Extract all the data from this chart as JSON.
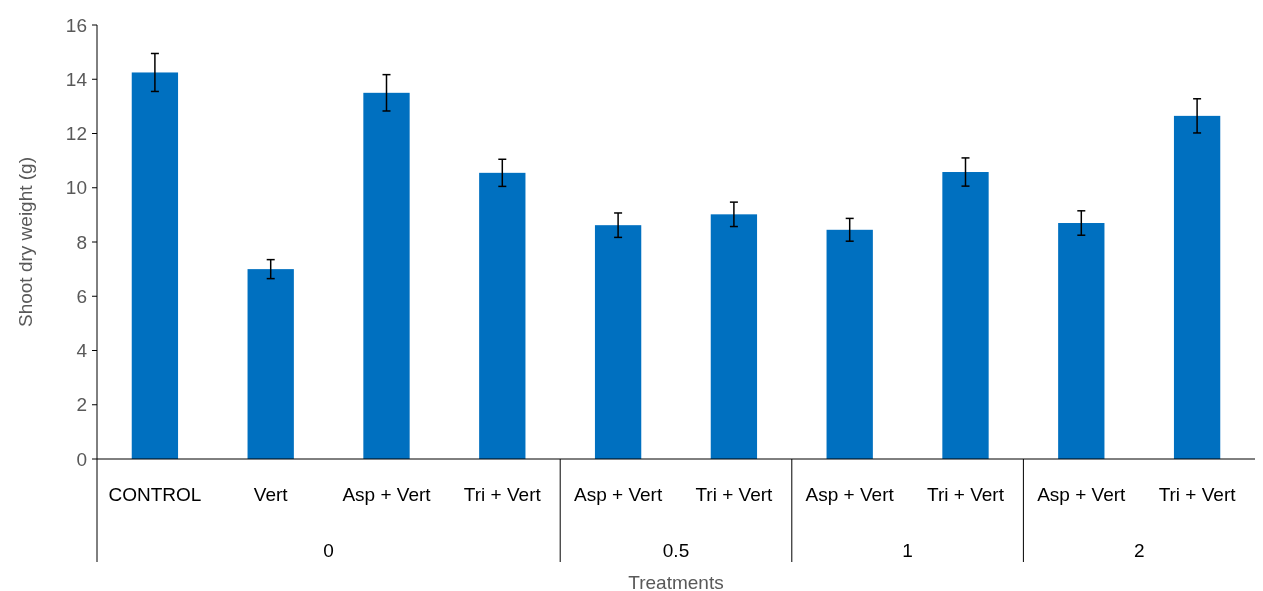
{
  "chart_data": {
    "type": "bar",
    "ylabel": "Shoot dry weight (g)",
    "xlabel": "Treatments",
    "categories": [
      "CONTROL",
      "Vert",
      "Asp + Vert",
      "Tri + Vert",
      "Asp + Vert",
      "Tri + Vert",
      "Asp + Vert",
      "Tri + Vert",
      "Asp + Vert",
      "Tri + Vert"
    ],
    "values": [
      14.25,
      7.0,
      13.5,
      10.55,
      8.62,
      9.02,
      8.45,
      10.58,
      8.7,
      12.65
    ],
    "errors": [
      0.7,
      0.35,
      0.67,
      0.5,
      0.45,
      0.45,
      0.42,
      0.52,
      0.45,
      0.63
    ],
    "color": "#0070c0",
    "ylim": [
      0,
      16
    ],
    "yticks": [
      0,
      2,
      4,
      6,
      8,
      10,
      12,
      14,
      16
    ],
    "annotations": [
      "0",
      "0.5",
      "1",
      "2"
    ]
  }
}
